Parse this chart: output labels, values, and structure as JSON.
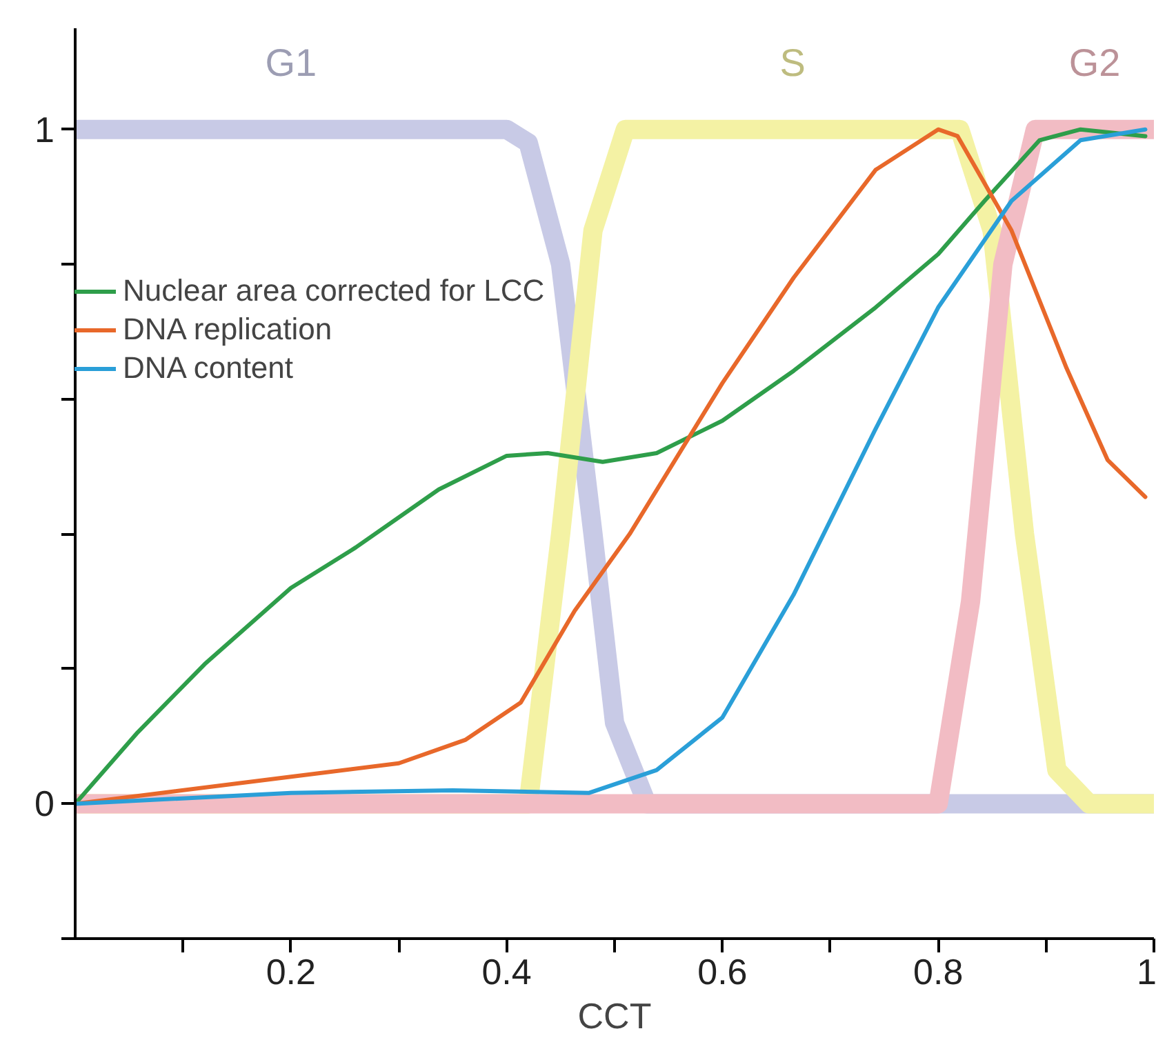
{
  "chart_data": {
    "type": "line",
    "xlabel": "CCT",
    "xlim": [
      0,
      1
    ],
    "ylim": [
      -0.2,
      1.15
    ],
    "xticks": [
      {
        "value": 0.1,
        "label": null
      },
      0.2,
      {
        "value": 0.3,
        "label": null
      },
      0.4,
      {
        "value": 0.5,
        "label": null
      },
      0.6,
      {
        "value": 0.7,
        "label": null
      },
      0.8,
      {
        "value": 0.9,
        "label": null
      },
      1
    ],
    "yticks": [
      {
        "value": -0.2,
        "label": null
      },
      0,
      {
        "value": 0.2,
        "label": null
      },
      {
        "value": 0.4,
        "label": null
      },
      {
        "value": 0.6,
        "label": null
      },
      {
        "value": 0.8,
        "label": null
      },
      1
    ],
    "annotations": [
      "G1",
      "S",
      "G2"
    ],
    "grid": false,
    "legend": "top left",
    "marker": "none",
    "line_style": "solid",
    "series": [
      {
        "color": "#c8cae6",
        "x": [
          0,
          0.4,
          0.42,
          0.45,
          0.48,
          0.5,
          0.53,
          1
        ],
        "values": [
          1,
          1,
          0.98,
          0.8,
          0.4,
          0.12,
          0,
          0
        ]
      },
      {
        "color": "#f4f2a4",
        "x": [
          0,
          0.42,
          0.45,
          0.48,
          0.51,
          0.82,
          0.85,
          0.88,
          0.91,
          0.94,
          1
        ],
        "values": [
          0,
          0,
          0.4,
          0.85,
          1,
          1,
          0.85,
          0.4,
          0.05,
          0,
          0
        ]
      },
      {
        "color": "#f2bcc4",
        "x": [
          0,
          0.8,
          0.83,
          0.86,
          0.89,
          1
        ],
        "values": [
          0,
          0,
          0.3,
          0.8,
          1,
          1
        ]
      },
      {
        "name": "Nuclear area corrected for LCC",
        "color": "#2e9e4a",
        "x": [
          0,
          0.058,
          0.12,
          0.2,
          0.26,
          0.337,
          0.4,
          0.438,
          0.489,
          0.539,
          0.6,
          0.666,
          0.742,
          0.8,
          0.843,
          0.894,
          0.932,
          0.992
        ],
        "values": [
          0,
          0.106,
          0.207,
          0.32,
          0.38,
          0.466,
          0.516,
          0.52,
          0.507,
          0.52,
          0.568,
          0.642,
          0.736,
          0.815,
          0.894,
          0.984,
          1,
          0.99
        ]
      },
      {
        "name": "DNA replication",
        "color": "#e8682a",
        "x": [
          0,
          0.2,
          0.3,
          0.362,
          0.413,
          0.463,
          0.514,
          0.6,
          0.666,
          0.742,
          0.8,
          0.818,
          0.868,
          0.919,
          0.957,
          0.992
        ],
        "values": [
          0,
          0.04,
          0.06,
          0.095,
          0.15,
          0.286,
          0.4,
          0.624,
          0.78,
          0.94,
          1,
          0.99,
          0.85,
          0.646,
          0.51,
          0.455
        ]
      },
      {
        "name": "DNA content",
        "color": "#2a9fd8",
        "x": [
          0,
          0.2,
          0.35,
          0.476,
          0.539,
          0.6,
          0.666,
          0.742,
          0.8,
          0.868,
          0.932,
          0.992
        ],
        "values": [
          0,
          0.016,
          0.02,
          0.016,
          0.05,
          0.128,
          0.31,
          0.556,
          0.736,
          0.894,
          0.984,
          1
        ]
      }
    ]
  }
}
